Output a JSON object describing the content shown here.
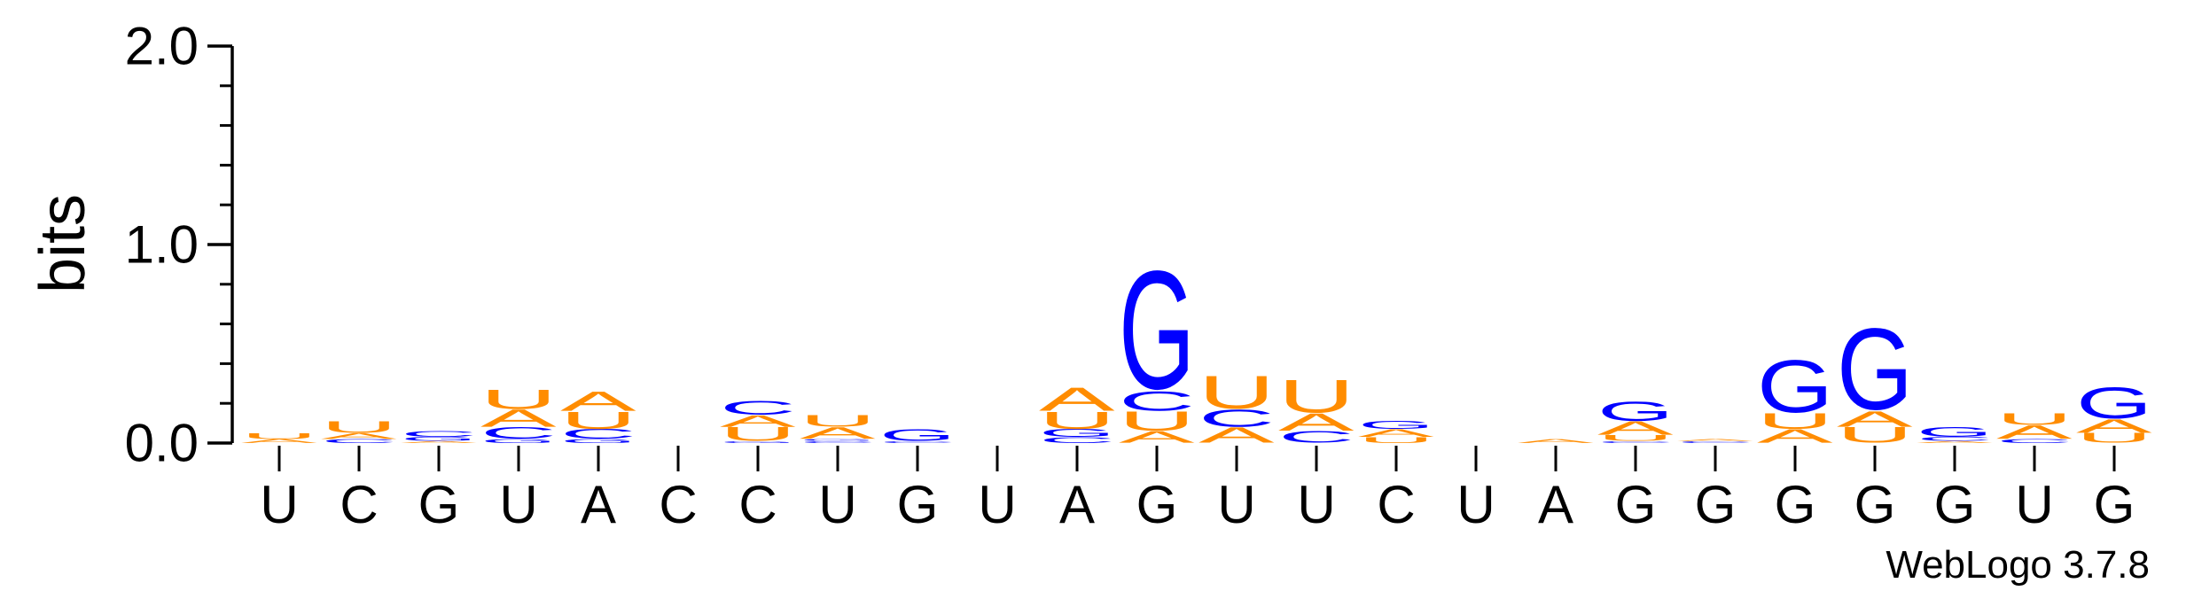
{
  "chart_data": {
    "type": "sequence_logo",
    "title": "",
    "xlabel": "",
    "ylabel": "bits",
    "ylim": [
      0,
      2.0
    ],
    "yticks": [
      "0.0",
      "1.0",
      "2.0"
    ],
    "credit": "WebLogo 3.7.8",
    "colors": {
      "A": "#ff8c00",
      "U": "#ff8c00",
      "C": "#0000ff",
      "G": "#0000ff"
    },
    "categories": [
      "U",
      "C",
      "G",
      "U",
      "A",
      "C",
      "C",
      "U",
      "G",
      "U",
      "A",
      "G",
      "U",
      "U",
      "C",
      "U",
      "A",
      "G",
      "G",
      "G",
      "G",
      "G",
      "U",
      "G"
    ],
    "positions": [
      {
        "x": "U",
        "letters": [
          {
            "b": "A",
            "h": 0.02
          },
          {
            "b": "U",
            "h": 0.03
          }
        ]
      },
      {
        "x": "C",
        "letters": [
          {
            "b": "C",
            "h": 0.02
          },
          {
            "b": "A",
            "h": 0.03
          },
          {
            "b": "U",
            "h": 0.06
          }
        ]
      },
      {
        "x": "G",
        "letters": [
          {
            "b": "A",
            "h": 0.01
          },
          {
            "b": "G",
            "h": 0.02
          },
          {
            "b": "C",
            "h": 0.03
          }
        ]
      },
      {
        "x": "U",
        "letters": [
          {
            "b": "G",
            "h": 0.02
          },
          {
            "b": "C",
            "h": 0.06
          },
          {
            "b": "A",
            "h": 0.09
          },
          {
            "b": "U",
            "h": 0.1
          }
        ]
      },
      {
        "x": "A",
        "letters": [
          {
            "b": "G",
            "h": 0.02
          },
          {
            "b": "C",
            "h": 0.05
          },
          {
            "b": "U",
            "h": 0.09
          },
          {
            "b": "A",
            "h": 0.1
          }
        ]
      },
      {
        "x": "C",
        "letters": []
      },
      {
        "x": "C",
        "letters": [
          {
            "b": "G",
            "h": 0.01
          },
          {
            "b": "U",
            "h": 0.07
          },
          {
            "b": "A",
            "h": 0.06
          },
          {
            "b": "C",
            "h": 0.07
          }
        ]
      },
      {
        "x": "U",
        "letters": [
          {
            "b": "C",
            "h": 0.01
          },
          {
            "b": "G",
            "h": 0.01
          },
          {
            "b": "A",
            "h": 0.06
          },
          {
            "b": "U",
            "h": 0.06
          }
        ]
      },
      {
        "x": "G",
        "letters": [
          {
            "b": "C",
            "h": 0.01
          },
          {
            "b": "G",
            "h": 0.06
          }
        ]
      },
      {
        "x": "U",
        "letters": []
      },
      {
        "x": "A",
        "letters": [
          {
            "b": "C",
            "h": 0.03
          },
          {
            "b": "G",
            "h": 0.04
          },
          {
            "b": "U",
            "h": 0.09
          },
          {
            "b": "A",
            "h": 0.12
          }
        ]
      },
      {
        "x": "G",
        "letters": [
          {
            "b": "A",
            "h": 0.06
          },
          {
            "b": "U",
            "h": 0.1
          },
          {
            "b": "C",
            "h": 0.1
          },
          {
            "b": "G",
            "h": 0.61
          }
        ]
      },
      {
        "x": "U",
        "letters": [
          {
            "b": "A",
            "h": 0.08
          },
          {
            "b": "C",
            "h": 0.09
          },
          {
            "b": "U",
            "h": 0.17
          }
        ]
      },
      {
        "x": "U",
        "letters": [
          {
            "b": "C",
            "h": 0.06
          },
          {
            "b": "A",
            "h": 0.09
          },
          {
            "b": "U",
            "h": 0.17
          }
        ]
      },
      {
        "x": "C",
        "letters": [
          {
            "b": "U",
            "h": 0.03
          },
          {
            "b": "A",
            "h": 0.04
          },
          {
            "b": "G",
            "h": 0.04
          }
        ]
      },
      {
        "x": "U",
        "letters": []
      },
      {
        "x": "A",
        "letters": [
          {
            "b": "A",
            "h": 0.02
          }
        ]
      },
      {
        "x": "G",
        "letters": [
          {
            "b": "C",
            "h": 0.01
          },
          {
            "b": "U",
            "h": 0.03
          },
          {
            "b": "A",
            "h": 0.07
          },
          {
            "b": "G",
            "h": 0.1
          }
        ]
      },
      {
        "x": "G",
        "letters": [
          {
            "b": "C",
            "h": 0.01
          },
          {
            "b": "A",
            "h": 0.01
          }
        ]
      },
      {
        "x": "G",
        "letters": [
          {
            "b": "A",
            "h": 0.07
          },
          {
            "b": "U",
            "h": 0.08
          },
          {
            "b": "G",
            "h": 0.27
          }
        ]
      },
      {
        "x": "G",
        "letters": [
          {
            "b": "U",
            "h": 0.08
          },
          {
            "b": "A",
            "h": 0.08
          },
          {
            "b": "G",
            "h": 0.42
          }
        ]
      },
      {
        "x": "G",
        "letters": [
          {
            "b": "A",
            "h": 0.01
          },
          {
            "b": "C",
            "h": 0.02
          },
          {
            "b": "G",
            "h": 0.05
          }
        ]
      },
      {
        "x": "U",
        "letters": [
          {
            "b": "C",
            "h": 0.02
          },
          {
            "b": "A",
            "h": 0.07
          },
          {
            "b": "U",
            "h": 0.06
          }
        ]
      },
      {
        "x": "G",
        "letters": [
          {
            "b": "U",
            "h": 0.05
          },
          {
            "b": "A",
            "h": 0.07
          },
          {
            "b": "G",
            "h": 0.16
          }
        ]
      }
    ]
  }
}
